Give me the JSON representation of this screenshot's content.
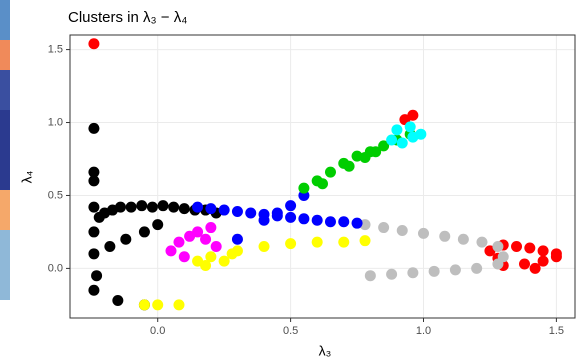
{
  "chart_data": {
    "type": "scatter",
    "title": "Clusters in λ₃ − λ₄",
    "x_label": "λ₃",
    "y_label": "λ₄",
    "xlim": [
      -0.33,
      1.57
    ],
    "ylim": [
      -0.34,
      1.6
    ],
    "xticks": [
      {
        "value": 0,
        "label": "0.0"
      },
      0.5,
      {
        "value": 1,
        "label": "1.0"
      },
      1.5
    ],
    "yticks": [
      {
        "value": 0,
        "label": "0.0"
      },
      0.5,
      {
        "value": 1,
        "label": "1.0"
      },
      1.5
    ],
    "grid": true,
    "series": [
      {
        "color": "#000000",
        "x": [
          -0.24,
          -0.24,
          -0.24,
          -0.24,
          -0.24,
          -0.24,
          -0.23,
          -0.24,
          -0.22,
          -0.2,
          -0.17,
          -0.14,
          -0.1,
          -0.06,
          -0.02,
          0.02,
          0.06,
          0.1,
          0.14,
          0.18,
          0.22,
          -0.18,
          -0.12,
          -0.05,
          0.0,
          -0.15,
          -0.05
        ],
        "y": [
          0.96,
          0.66,
          0.6,
          0.42,
          0.25,
          0.1,
          -0.05,
          -0.15,
          0.35,
          0.38,
          0.4,
          0.42,
          0.42,
          0.43,
          0.42,
          0.43,
          0.42,
          0.41,
          0.4,
          0.4,
          0.38,
          0.15,
          0.2,
          0.25,
          0.3,
          -0.22,
          -0.25
        ]
      },
      {
        "color": "#ff0000",
        "x": [
          -0.24,
          0.93,
          0.96,
          1.25,
          1.3,
          1.35,
          1.4,
          1.45,
          1.5,
          1.3,
          1.38,
          1.45,
          1.5,
          1.28,
          1.42
        ],
        "y": [
          1.54,
          1.02,
          1.05,
          0.12,
          0.16,
          0.15,
          0.14,
          0.12,
          0.08,
          0.02,
          0.03,
          0.05,
          0.1,
          0.07,
          0.0
        ]
      },
      {
        "color": "#bebebe",
        "x": [
          0.78,
          0.85,
          0.92,
          1.0,
          1.08,
          1.15,
          1.22,
          1.28,
          0.8,
          0.88,
          0.96,
          1.04,
          1.12,
          1.2,
          1.28,
          1.3
        ],
        "y": [
          0.3,
          0.28,
          0.26,
          0.24,
          0.22,
          0.2,
          0.18,
          0.15,
          -0.05,
          -0.04,
          -0.03,
          -0.02,
          -0.01,
          0.0,
          0.03,
          0.08
        ]
      },
      {
        "color": "#0000ff",
        "x": [
          0.15,
          0.2,
          0.25,
          0.3,
          0.35,
          0.4,
          0.45,
          0.5,
          0.55,
          0.6,
          0.65,
          0.7,
          0.75,
          0.4,
          0.45,
          0.5,
          0.55,
          0.3
        ],
        "y": [
          0.42,
          0.41,
          0.4,
          0.39,
          0.38,
          0.37,
          0.36,
          0.35,
          0.34,
          0.33,
          0.32,
          0.32,
          0.31,
          0.33,
          0.38,
          0.43,
          0.5,
          0.2
        ]
      },
      {
        "color": "#00cd00",
        "x": [
          0.55,
          0.6,
          0.65,
          0.7,
          0.75,
          0.8,
          0.85,
          0.9,
          0.95,
          0.62,
          0.72,
          0.82,
          0.78
        ],
        "y": [
          0.55,
          0.6,
          0.66,
          0.72,
          0.77,
          0.8,
          0.84,
          0.88,
          0.92,
          0.58,
          0.7,
          0.8,
          0.76
        ]
      },
      {
        "color": "#00ffff",
        "x": [
          0.88,
          0.92,
          0.96,
          0.99,
          0.9,
          0.95
        ],
        "y": [
          0.88,
          0.86,
          0.9,
          0.92,
          0.95,
          0.97
        ]
      },
      {
        "color": "#ff00ff",
        "x": [
          0.05,
          0.08,
          0.12,
          0.15,
          0.18,
          0.22,
          0.1,
          0.2
        ],
        "y": [
          0.12,
          0.18,
          0.22,
          0.25,
          0.2,
          0.15,
          0.08,
          0.28
        ]
      },
      {
        "color": "#ffff00",
        "x": [
          -0.05,
          0.0,
          0.08,
          0.15,
          0.2,
          0.25,
          0.3,
          0.4,
          0.5,
          0.6,
          0.7,
          0.78,
          0.18,
          0.28
        ],
        "y": [
          -0.25,
          -0.25,
          -0.25,
          0.05,
          0.08,
          0.05,
          0.12,
          0.15,
          0.17,
          0.18,
          0.18,
          0.19,
          0.02,
          0.1
        ]
      }
    ]
  }
}
